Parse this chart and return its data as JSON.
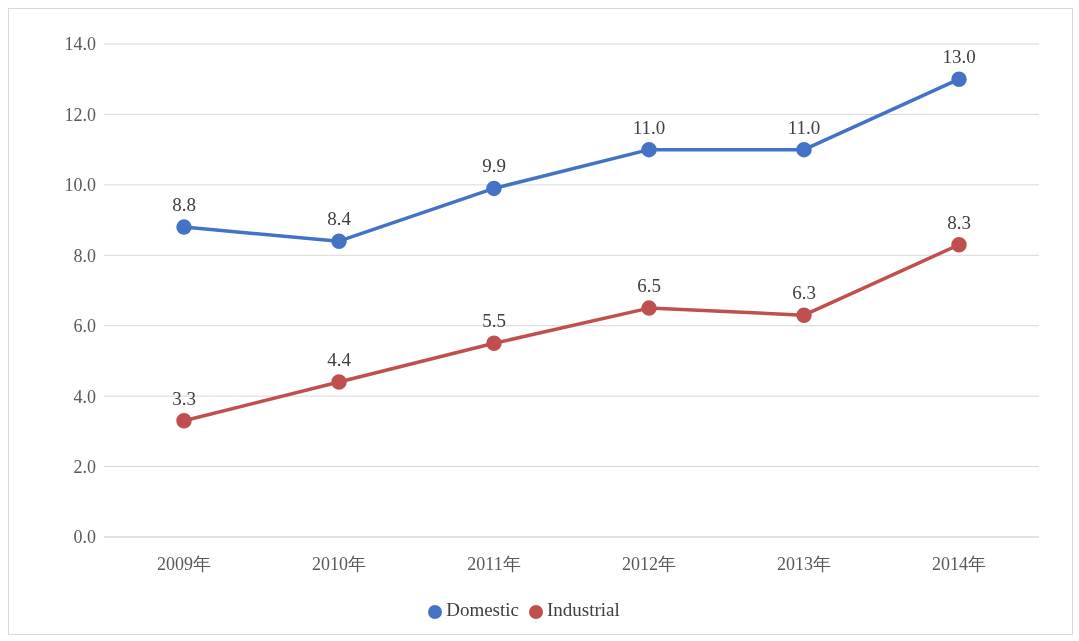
{
  "chart_data": {
    "type": "line",
    "categories": [
      "2009年",
      "2010年",
      "2011年",
      "2012年",
      "2013年",
      "2014年"
    ],
    "series": [
      {
        "name": "Domestic",
        "color": "#4472c4",
        "values": [
          8.8,
          8.4,
          9.9,
          11.0,
          11.0,
          13.0
        ],
        "value_labels": [
          "8.8",
          "8.4",
          "9.9",
          "11.0",
          "11.0",
          "13.0"
        ]
      },
      {
        "name": "Industrial",
        "color": "#c0504d",
        "values": [
          3.3,
          4.4,
          5.5,
          6.5,
          6.3,
          8.3
        ],
        "value_labels": [
          "3.3",
          "4.4",
          "5.5",
          "6.5",
          "6.3",
          "8.3"
        ]
      }
    ],
    "ylim": [
      0,
      14
    ],
    "yticks": [
      {
        "value": 0,
        "label": "0.0"
      },
      {
        "value": 2,
        "label": "2.0"
      },
      {
        "value": 4,
        "label": "4.0"
      },
      {
        "value": 6,
        "label": "6.0"
      },
      {
        "value": 8,
        "label": "8.0"
      },
      {
        "value": 10,
        "label": "10.0"
      },
      {
        "value": 12,
        "label": "12.0"
      },
      {
        "value": 14,
        "label": "14.0"
      }
    ],
    "grid": "y",
    "legend": "bottom",
    "marker": "circle",
    "line_style": "solid"
  }
}
